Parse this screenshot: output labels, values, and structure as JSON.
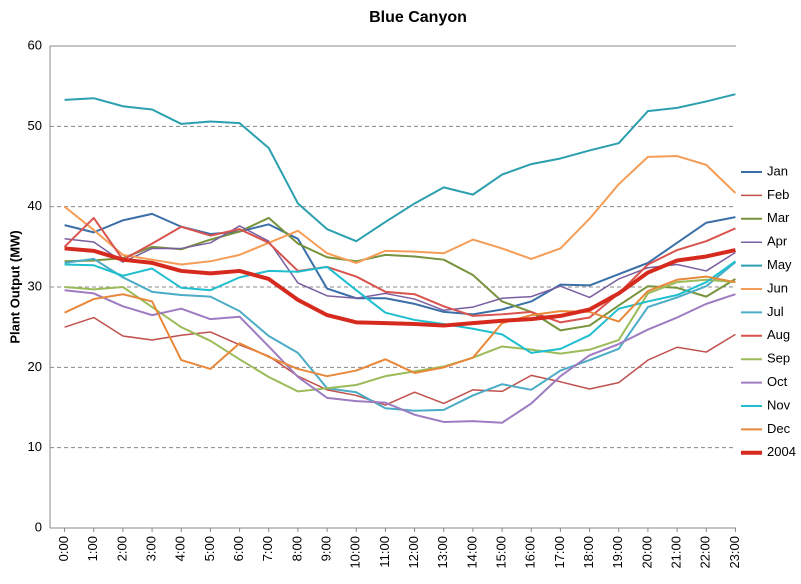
{
  "chart_data": {
    "type": "line",
    "title": "Blue Canyon",
    "y_label": "Plant Output (MW)",
    "categories": [
      "0:00",
      "1:00",
      "2:00",
      "3:00",
      "4:00",
      "5:00",
      "6:00",
      "7:00",
      "8:00",
      "9:00",
      "10:00",
      "11:00",
      "12:00",
      "13:00",
      "14:00",
      "15:00",
      "16:00",
      "17:00",
      "18:00",
      "19:00",
      "20:00",
      "21:00",
      "22:00",
      "23:00"
    ],
    "ylim": [
      0,
      60
    ],
    "yticks": [
      0,
      10,
      20,
      30,
      40,
      50,
      60
    ],
    "grid": true,
    "legend": "right",
    "series": [
      {
        "name": "Jan",
        "color": "#3a6fa8",
        "width": 2,
        "values": [
          37.7,
          36.8,
          38.3,
          39.1,
          37.5,
          36.6,
          36.9,
          37.8,
          36.0,
          29.8,
          28.6,
          28.6,
          27.9,
          26.9,
          26.6,
          27.2,
          28.2,
          30.3,
          30.2,
          31.6,
          33.0,
          35.5,
          38.0,
          38.7
        ]
      },
      {
        "name": "Feb",
        "color": "#c0504d",
        "width": 1.5,
        "values": [
          25.0,
          26.2,
          23.9,
          23.4,
          24.0,
          24.4,
          22.8,
          21.4,
          18.9,
          17.2,
          16.5,
          15.3,
          16.9,
          15.5,
          17.2,
          17.0,
          19.0,
          18.2,
          17.3,
          18.1,
          20.9,
          22.5,
          21.9,
          24.1
        ]
      },
      {
        "name": "Mar",
        "color": "#77933c",
        "width": 2,
        "values": [
          33.2,
          33.3,
          33.6,
          35.0,
          34.7,
          35.9,
          36.9,
          38.6,
          35.4,
          33.7,
          33.2,
          34.0,
          33.8,
          33.4,
          31.5,
          28.2,
          26.9,
          24.6,
          25.2,
          27.7,
          30.1,
          29.9,
          28.8,
          31.0
        ]
      },
      {
        "name": "Apr",
        "color": "#7a5fa0",
        "width": 1.5,
        "values": [
          36.0,
          35.6,
          33.1,
          34.8,
          34.8,
          35.5,
          37.6,
          35.7,
          30.5,
          28.9,
          28.6,
          29.2,
          28.5,
          27.1,
          27.5,
          28.6,
          28.8,
          30.1,
          28.7,
          31.0,
          32.4,
          32.8,
          32.0,
          34.3
        ]
      },
      {
        "name": "May",
        "color": "#2b9fae",
        "width": 2,
        "values": [
          53.3,
          53.5,
          52.5,
          52.1,
          50.3,
          50.6,
          50.4,
          47.3,
          40.4,
          37.2,
          35.7,
          38.1,
          40.4,
          42.4,
          41.5,
          44.0,
          45.3,
          46.0,
          47.0,
          47.9,
          51.9,
          52.3,
          53.1,
          54.0
        ]
      },
      {
        "name": "Jun",
        "color": "#f59d56",
        "width": 2,
        "values": [
          40.0,
          37.1,
          34.0,
          33.4,
          32.8,
          33.2,
          34.0,
          35.5,
          37.0,
          34.2,
          33.0,
          34.5,
          34.4,
          34.2,
          35.9,
          34.8,
          33.5,
          34.8,
          38.5,
          42.8,
          46.2,
          46.3,
          45.2,
          41.7
        ]
      },
      {
        "name": "Jul",
        "color": "#4bacc6",
        "width": 2,
        "values": [
          33.0,
          33.5,
          31.2,
          29.4,
          29.0,
          28.8,
          27.0,
          23.9,
          21.8,
          17.4,
          16.9,
          14.9,
          14.6,
          14.7,
          16.5,
          17.9,
          17.2,
          19.6,
          20.9,
          22.3,
          27.5,
          28.7,
          30.1,
          33.1
        ]
      },
      {
        "name": "Aug",
        "color": "#d9534f",
        "width": 2,
        "values": [
          35.0,
          38.6,
          33.4,
          35.4,
          37.5,
          36.4,
          37.2,
          35.5,
          32.0,
          32.5,
          31.3,
          29.4,
          29.1,
          27.6,
          26.4,
          26.6,
          26.9,
          25.6,
          26.2,
          29.2,
          32.8,
          34.6,
          35.7,
          37.3
        ]
      },
      {
        "name": "Sep",
        "color": "#9bbb59",
        "width": 2,
        "values": [
          30.0,
          29.7,
          30.0,
          27.5,
          25.0,
          23.3,
          21.0,
          18.8,
          17.0,
          17.4,
          17.8,
          18.9,
          19.5,
          20.1,
          21.2,
          22.6,
          22.2,
          21.7,
          22.2,
          23.4,
          29.2,
          30.6,
          30.9,
          30.6
        ]
      },
      {
        "name": "Oct",
        "color": "#9e7cc1",
        "width": 2,
        "values": [
          29.6,
          29.2,
          27.6,
          26.5,
          27.3,
          26.0,
          26.3,
          22.6,
          18.8,
          16.2,
          15.8,
          15.6,
          14.1,
          13.2,
          13.3,
          13.1,
          15.5,
          18.9,
          21.5,
          22.9,
          24.7,
          26.2,
          27.9,
          29.1
        ]
      },
      {
        "name": "Nov",
        "color": "#1fbfd0",
        "width": 2,
        "values": [
          32.8,
          32.7,
          31.4,
          32.3,
          29.9,
          29.6,
          31.2,
          32.0,
          31.9,
          32.5,
          29.6,
          26.8,
          25.9,
          25.4,
          24.8,
          24.1,
          21.8,
          22.3,
          24.0,
          27.3,
          28.2,
          29.0,
          30.6,
          33.2
        ]
      },
      {
        "name": "Dec",
        "color": "#e8883a",
        "width": 2,
        "values": [
          26.8,
          28.5,
          29.1,
          28.2,
          20.9,
          19.8,
          23.0,
          21.3,
          19.8,
          18.9,
          19.6,
          21.0,
          19.3,
          20.0,
          21.2,
          25.5,
          26.5,
          27.0,
          26.9,
          25.7,
          29.5,
          30.9,
          31.3,
          30.6
        ]
      },
      {
        "name": "2004",
        "color": "#d62a1e",
        "width": 4,
        "values": [
          34.8,
          34.5,
          33.4,
          33.0,
          32.0,
          31.7,
          32.0,
          31.0,
          28.4,
          26.5,
          25.6,
          25.5,
          25.4,
          25.2,
          25.5,
          25.8,
          26.0,
          26.4,
          27.2,
          29.2,
          31.8,
          33.3,
          33.8,
          34.6
        ]
      }
    ]
  }
}
